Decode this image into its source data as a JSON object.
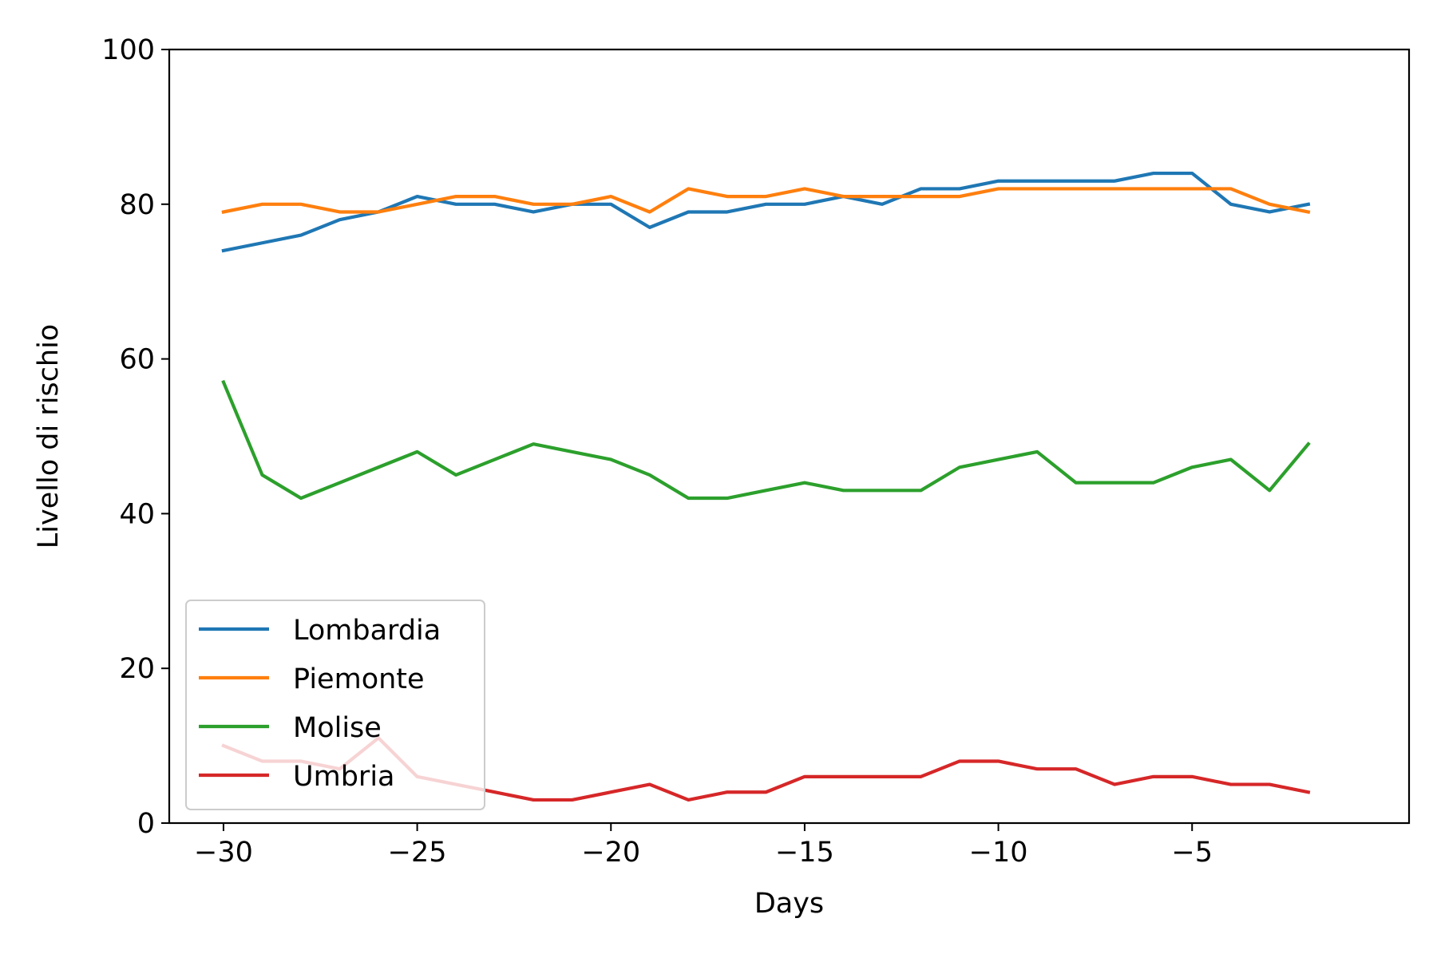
{
  "chart_data": {
    "type": "line",
    "title": "",
    "xlabel": "Days",
    "ylabel": "Livello di rischio",
    "xlim": [
      -31.4,
      0.6
    ],
    "ylim": [
      0,
      100
    ],
    "xticks": [
      -30,
      -25,
      -20,
      -15,
      -10,
      -5
    ],
    "yticks": [
      0,
      20,
      40,
      60,
      80,
      100
    ],
    "grid": false,
    "legend_position": "lower-left",
    "x": [
      -30,
      -29,
      -28,
      -27,
      -26,
      -25,
      -24,
      -23,
      -22,
      -21,
      -20,
      -19,
      -18,
      -17,
      -16,
      -15,
      -14,
      -13,
      -12,
      -11,
      -10,
      -9,
      -8,
      -7,
      -6,
      -5,
      -4,
      -3,
      -2
    ],
    "series": [
      {
        "name": "Lombardia",
        "color": "#1f77b4",
        "values": [
          74,
          75,
          76,
          78,
          79,
          81,
          80,
          80,
          79,
          80,
          80,
          77,
          79,
          79,
          80,
          80,
          81,
          80,
          82,
          82,
          83,
          83,
          83,
          83,
          84,
          84,
          80,
          79,
          80
        ]
      },
      {
        "name": "Piemonte",
        "color": "#ff7f0e",
        "values": [
          79,
          80,
          80,
          79,
          79,
          80,
          81,
          81,
          80,
          80,
          81,
          79,
          82,
          81,
          81,
          82,
          81,
          81,
          81,
          81,
          82,
          82,
          82,
          82,
          82,
          82,
          82,
          80,
          79
        ]
      },
      {
        "name": "Molise",
        "color": "#2ca02c",
        "values": [
          57,
          45,
          42,
          44,
          46,
          48,
          45,
          47,
          49,
          48,
          47,
          45,
          42,
          42,
          43,
          44,
          43,
          43,
          43,
          46,
          47,
          48,
          44,
          44,
          44,
          46,
          47,
          43,
          49
        ]
      },
      {
        "name": "Umbria",
        "color": "#d62728",
        "values": [
          10,
          8,
          8,
          7,
          11,
          6,
          5,
          4,
          3,
          3,
          4,
          5,
          3,
          4,
          4,
          6,
          6,
          6,
          6,
          8,
          8,
          7,
          7,
          5,
          6,
          6,
          5,
          5,
          4
        ]
      }
    ]
  }
}
